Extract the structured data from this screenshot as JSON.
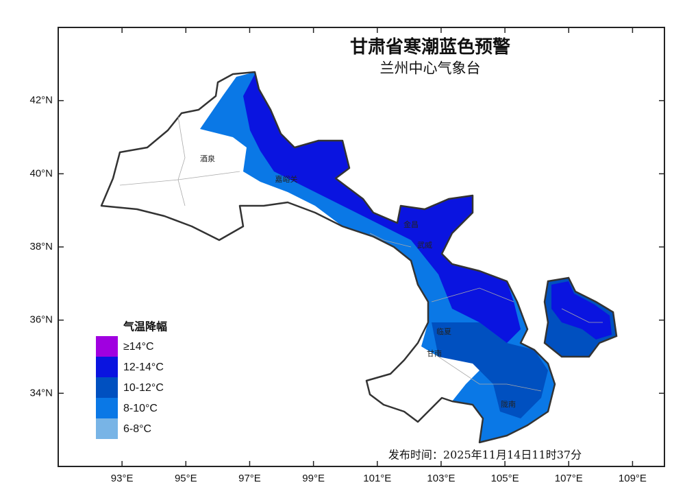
{
  "header": {
    "title": "甘肃省寒潮蓝色预警",
    "subtitle": "兰州中心气象台"
  },
  "map": {
    "xlim": [
      91,
      110
    ],
    "ylim": [
      32,
      44
    ],
    "xticks": [
      {
        "value": 93,
        "label": "93°E"
      },
      {
        "value": 95,
        "label": "95°E"
      },
      {
        "value": 97,
        "label": "97°E"
      },
      {
        "value": 99,
        "label": "99°E"
      },
      {
        "value": 101,
        "label": "101°E"
      },
      {
        "value": 103,
        "label": "103°E"
      },
      {
        "value": 105,
        "label": "105°E"
      },
      {
        "value": 107,
        "label": "107°E"
      },
      {
        "value": 109,
        "label": "109°E"
      }
    ],
    "yticks": [
      {
        "value": 34,
        "label": "34°N"
      },
      {
        "value": 36,
        "label": "36°N"
      },
      {
        "value": 38,
        "label": "38°N"
      },
      {
        "value": 40,
        "label": "40°N"
      },
      {
        "value": 42,
        "label": "42°N"
      }
    ],
    "places": [
      "酒泉",
      "嘉峪关",
      "金昌",
      "武威",
      "临夏",
      "甘南",
      "陇南"
    ]
  },
  "legend": {
    "title": "气温降幅",
    "items": [
      {
        "label": "≥14°C",
        "color": "#a000e0"
      },
      {
        "label": "12-14°C",
        "color": "#0a14e0"
      },
      {
        "label": "10-12°C",
        "color": "#0050c0"
      },
      {
        "label": "8-10°C",
        "color": "#0a78e6"
      },
      {
        "label": "6-8°C",
        "color": "#78b4e6"
      }
    ]
  },
  "footer": {
    "issued": "发布时间：2025年11月14日11时37分"
  }
}
